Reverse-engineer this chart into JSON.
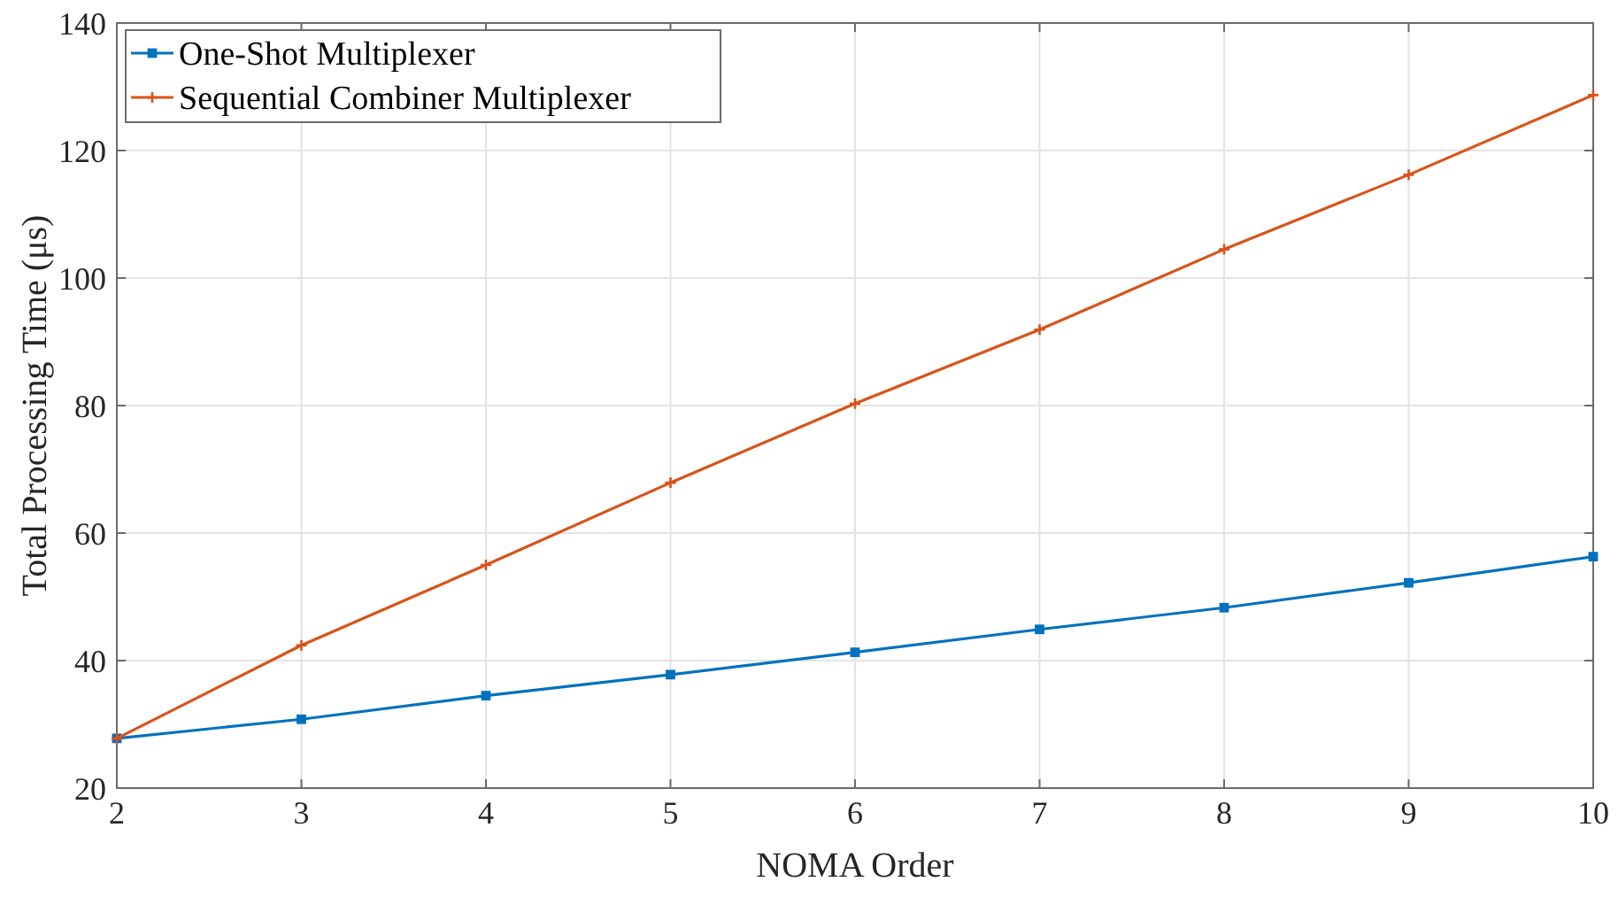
{
  "chart_data": {
    "type": "line",
    "xlabel": "NOMA Order",
    "ylabel": "Total Processing Time (μs)",
    "x": [
      2,
      3,
      4,
      5,
      6,
      7,
      8,
      9,
      10
    ],
    "series": [
      {
        "name": "One-Shot Multiplexer",
        "color": "#0072bd",
        "marker": "square",
        "values": [
          27.8,
          30.8,
          34.5,
          37.8,
          41.3,
          44.9,
          48.3,
          52.2,
          56.3
        ]
      },
      {
        "name": "Sequential Combiner Multiplexer",
        "color": "#d95319",
        "marker": "cross",
        "values": [
          27.8,
          42.4,
          55,
          67.9,
          80.3,
          91.9,
          104.5,
          116.2,
          128.7
        ]
      }
    ],
    "xlim": [
      2,
      10
    ],
    "xticks": [
      2,
      3,
      4,
      5,
      6,
      7,
      8,
      9,
      10
    ],
    "ylim": [
      20,
      140
    ],
    "yticks": [
      20,
      40,
      60,
      80,
      100,
      120,
      140
    ],
    "grid": true,
    "legend": "top left",
    "line_style": "solid"
  }
}
